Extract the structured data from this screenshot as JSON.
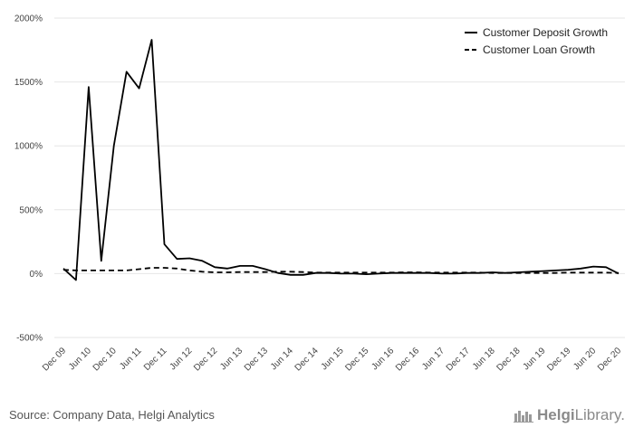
{
  "chart_data": {
    "type": "line",
    "ylim": [
      -500,
      2000
    ],
    "yticks": [
      -500,
      0,
      500,
      1000,
      1500,
      2000
    ],
    "ytick_labels": [
      "-500%",
      "0%",
      "500%",
      "1000%",
      "1500%",
      "2000%"
    ],
    "x": [
      "Dec 09",
      "Mar 10",
      "Jun 10",
      "Sep 10",
      "Dec 10",
      "Mar 11",
      "Jun 11",
      "Sep 11",
      "Dec 11",
      "Mar 12",
      "Jun 12",
      "Sep 12",
      "Dec 12",
      "Mar 13",
      "Jun 13",
      "Sep 13",
      "Dec 13",
      "Mar 14",
      "Jun 14",
      "Sep 14",
      "Dec 14",
      "Mar 15",
      "Jun 15",
      "Sep 15",
      "Dec 15",
      "Mar 16",
      "Jun 16",
      "Sep 16",
      "Dec 16",
      "Mar 17",
      "Jun 17",
      "Sep 17",
      "Dec 17",
      "Mar 18",
      "Jun 18",
      "Sep 18",
      "Dec 18",
      "Mar 19",
      "Jun 19",
      "Sep 19",
      "Dec 19",
      "Mar 20",
      "Jun 20",
      "Sep 20",
      "Dec 20"
    ],
    "xtick_labels": [
      "Dec 09",
      "Jun 10",
      "Dec 10",
      "Jun 11",
      "Dec 11",
      "Jun 12",
      "Dec 12",
      "Jun 13",
      "Dec 13",
      "Jun 14",
      "Dec 14",
      "Jun 15",
      "Dec 15",
      "Jun 16",
      "Dec 16",
      "Jun 17",
      "Dec 17",
      "Jun 18",
      "Dec 18",
      "Jun 19",
      "Dec 19",
      "Jun 20",
      "Dec 20"
    ],
    "grid": true,
    "legend_position": "top-right",
    "series": [
      {
        "name": "Customer Deposit Growth",
        "style": "solid",
        "color": "#000000",
        "values": [
          40,
          -50,
          1460,
          100,
          1000,
          1580,
          1450,
          1830,
          230,
          115,
          120,
          100,
          50,
          40,
          60,
          60,
          35,
          5,
          -10,
          -10,
          5,
          5,
          0,
          0,
          -5,
          0,
          5,
          5,
          5,
          5,
          0,
          0,
          5,
          5,
          10,
          5,
          10,
          15,
          20,
          25,
          30,
          40,
          55,
          50,
          0
        ]
      },
      {
        "name": "Customer Loan Growth",
        "style": "dashed",
        "color": "#000000",
        "values": [
          30,
          25,
          25,
          25,
          25,
          25,
          35,
          45,
          45,
          40,
          25,
          15,
          10,
          10,
          12,
          12,
          12,
          15,
          15,
          12,
          8,
          8,
          8,
          8,
          8,
          8,
          8,
          10,
          10,
          8,
          8,
          8,
          8,
          8,
          5,
          5,
          5,
          5,
          5,
          5,
          8,
          8,
          8,
          8,
          5
        ]
      }
    ]
  },
  "footer": {
    "source": "Source: Company Data, Helgi Analytics",
    "logo_part1": "Helgi",
    "logo_part2": "Library."
  }
}
